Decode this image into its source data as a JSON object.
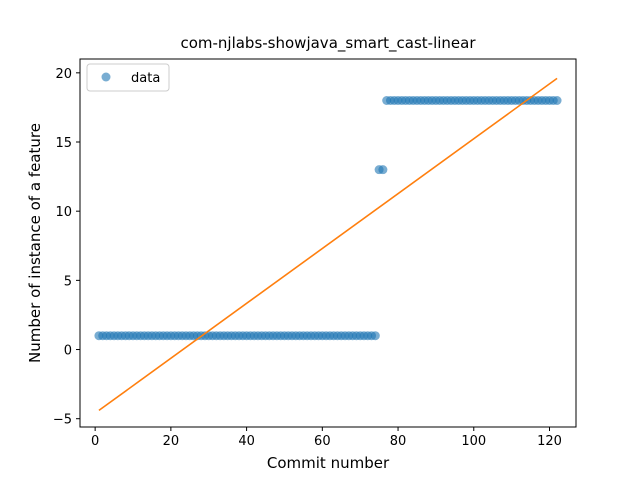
{
  "chart_data": {
    "type": "scatter",
    "title": "com-njlabs-showjava_smart_cast-linear",
    "xlabel": "Commit number",
    "ylabel": "Number of instance of a feature",
    "xlim": [
      -4,
      127
    ],
    "ylim": [
      -5.6,
      21.0
    ],
    "xticks": [
      0,
      20,
      40,
      60,
      80,
      100,
      120
    ],
    "yticks": [
      -5,
      0,
      5,
      10,
      15,
      20
    ],
    "grid": false,
    "legend_position": "top-left",
    "series": [
      {
        "name": "data",
        "kind": "scatter",
        "color": "#1f77b4",
        "segments": [
          {
            "x_start": 1,
            "x_end": 74,
            "y": 1
          },
          {
            "x_start": 75,
            "x_end": 76,
            "y": 13
          },
          {
            "x_start": 77,
            "x_end": 122,
            "y": 18
          }
        ]
      },
      {
        "kind": "line",
        "color": "#ff7f0e",
        "points": [
          [
            1,
            -4.4
          ],
          [
            122,
            19.6
          ]
        ]
      }
    ]
  }
}
